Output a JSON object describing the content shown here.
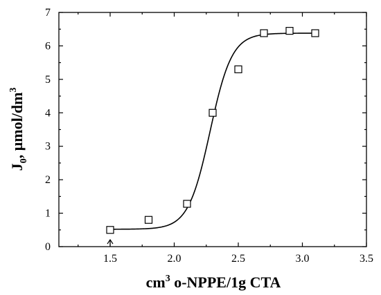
{
  "chart_data": {
    "type": "scatter",
    "title": "",
    "xlabel_parts": {
      "pre": "cm",
      "sup": "3",
      "post": " o-NPPE/1g CTA"
    },
    "ylabel_parts": {
      "a": "J",
      "a_sub": "0",
      "b": ", µmol/dm",
      "b_sup": "3"
    },
    "xlim": [
      1.1,
      3.5
    ],
    "ylim": [
      0,
      7
    ],
    "xticks": [
      1.5,
      2.0,
      2.5,
      3.0,
      3.5
    ],
    "xtick_labels": [
      "1.5",
      "2.0",
      "2.5",
      "3.0",
      "3.5"
    ],
    "yticks": [
      0,
      1,
      2,
      3,
      4,
      5,
      6,
      7
    ],
    "ytick_labels": [
      "0",
      "1",
      "2",
      "3",
      "4",
      "5",
      "6",
      "7"
    ],
    "series": [
      {
        "marker": "open-square",
        "x": [
          1.5,
          1.8,
          2.1,
          2.3,
          2.5,
          2.7,
          2.9,
          3.1
        ],
        "y": [
          0.5,
          0.8,
          1.28,
          4.0,
          5.3,
          6.38,
          6.45,
          6.38
        ]
      }
    ],
    "fit_curve": {
      "type": "sigmoid",
      "bottom": 0.52,
      "top": 6.38,
      "x0": 2.28,
      "width": 0.085,
      "x_range": [
        1.5,
        3.1
      ]
    },
    "annotation": {
      "type": "up-arrow",
      "x": 1.5
    },
    "grid": false,
    "legend": "none"
  }
}
